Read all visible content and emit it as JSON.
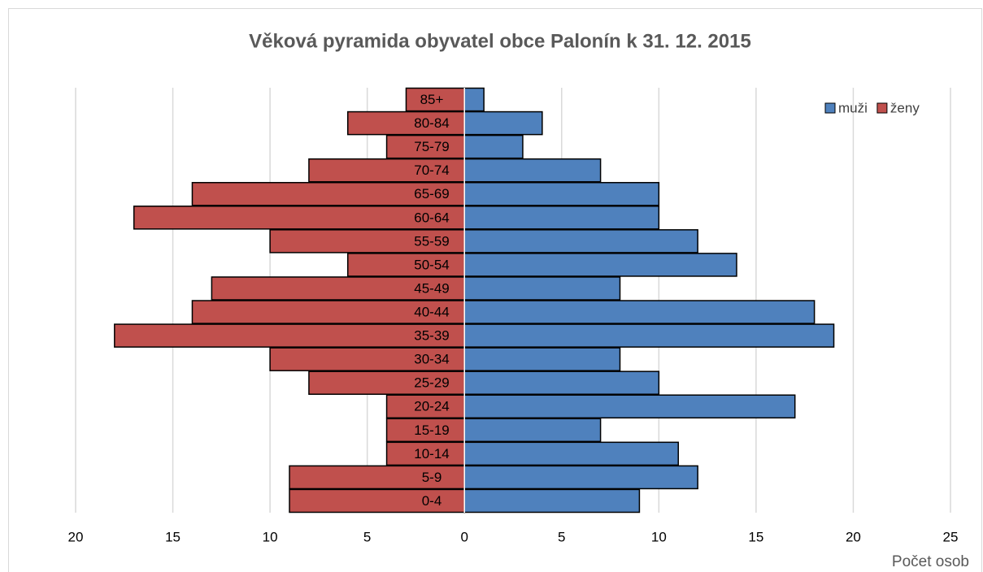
{
  "chart_data": {
    "type": "bar",
    "orientation": "horizontal",
    "stacked": true,
    "title": "Věková pyramida obyvatel obce Palonín k 31. 12. 2015",
    "x_label": "Počet osob",
    "categories": [
      "0-4",
      "5-9",
      "10-14",
      "15-19",
      "20-24",
      "25-29",
      "30-34",
      "35-39",
      "40-44",
      "45-49",
      "50-54",
      "55-59",
      "60-64",
      "65-69",
      "70-74",
      "75-79",
      "80-84",
      "85+"
    ],
    "series": [
      {
        "name": "muži",
        "color": "#4f81bd",
        "values": [
          9,
          12,
          11,
          7,
          17,
          10,
          8,
          19,
          18,
          8,
          14,
          12,
          10,
          10,
          7,
          3,
          4,
          1
        ]
      },
      {
        "name": "ženy",
        "color": "#c0504d",
        "values": [
          -9,
          -9,
          -4,
          -4,
          -4,
          -8,
          -10,
          -18,
          -14,
          -13,
          -6,
          -10,
          -17,
          -14,
          -8,
          -4,
          -6,
          -3
        ]
      }
    ],
    "xlim": [
      -20,
      25
    ],
    "xticks": [
      {
        "value": -20,
        "label": "20"
      },
      {
        "value": -15,
        "label": "15"
      },
      {
        "value": -10,
        "label": "10"
      },
      {
        "value": -5,
        "label": "5"
      },
      0,
      5,
      10,
      15,
      20,
      25
    ],
    "grid": true,
    "legend": "top-right"
  }
}
